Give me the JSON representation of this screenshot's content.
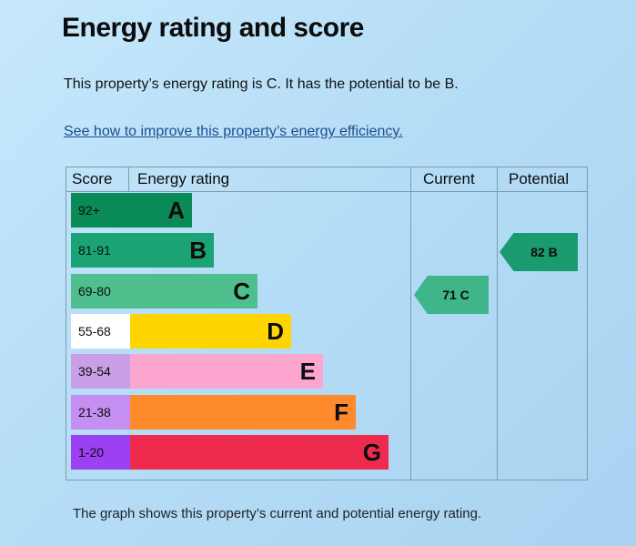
{
  "title": "Energy rating and score",
  "description": "This property’s energy rating is C. It has the potential to be B.",
  "improve_link": "See how to improve this property’s energy efficiency",
  "table": {
    "headers": {
      "score": "Score",
      "rating": "Energy rating",
      "current": "Current",
      "potential": "Potential"
    },
    "bands": [
      {
        "score": "92+",
        "letter": "A",
        "color": "#0a8a56",
        "score_bg": "#0a8a56"
      },
      {
        "score": "81-91",
        "letter": "B",
        "color": "#1aa374",
        "score_bg": "#1aa374"
      },
      {
        "score": "69-80",
        "letter": "C",
        "color": "#4fc08d",
        "score_bg": "#4fc08d"
      },
      {
        "score": "55-68",
        "letter": "D",
        "color": "#ffd500",
        "score_bg": "#ffffff"
      },
      {
        "score": "39-54",
        "letter": "E",
        "color": "#fca6cf",
        "score_bg": "#c9a0e8"
      },
      {
        "score": "21-38",
        "letter": "F",
        "color": "#ff8a2b",
        "score_bg": "#c48ff0"
      },
      {
        "score": "1-20",
        "letter": "G",
        "color": "#ef2a4f",
        "score_bg": "#9b40f2"
      }
    ],
    "current": {
      "label": "71 C",
      "color": "#3fb58a"
    },
    "potential": {
      "label": "82 B",
      "color": "#1a9a6f"
    }
  },
  "caption": "The graph shows this property’s current and potential energy rating."
}
